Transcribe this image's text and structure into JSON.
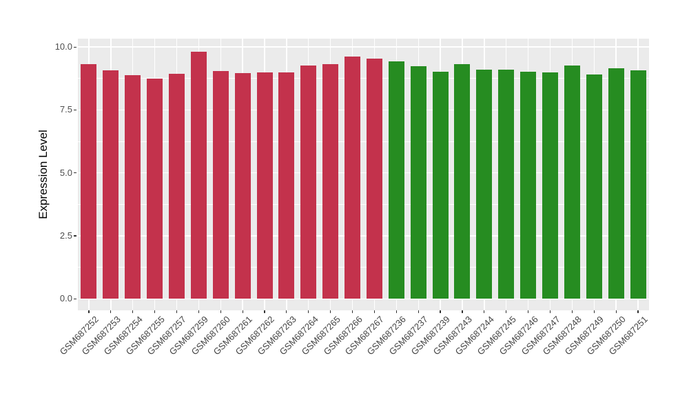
{
  "chart_data": {
    "type": "bar",
    "title": "",
    "xlabel": "",
    "ylabel": "Expression Level",
    "ylim": [
      0,
      10.3
    ],
    "grid": "white major and minor horizontal gridlines plus vertical gridlines at each bar center, on light gray panel",
    "legend_position": "none",
    "yticks": {
      "values": [
        0,
        2.5,
        5,
        7.5,
        10
      ],
      "labels": [
        "0.0",
        "2.5",
        "5.0",
        "7.5",
        "10.0"
      ],
      "minor_values": [
        1.25,
        3.75,
        6.25,
        8.75
      ]
    },
    "groups": [
      {
        "name": "red-group",
        "color": "#C3324C",
        "samples": [
          {
            "label": "GSM687252",
            "value": 9.31
          },
          {
            "label": "GSM687253",
            "value": 9.08
          },
          {
            "label": "GSM687254",
            "value": 8.88
          },
          {
            "label": "GSM687255",
            "value": 8.74
          },
          {
            "label": "GSM687257",
            "value": 8.93
          },
          {
            "label": "GSM687259",
            "value": 9.81
          },
          {
            "label": "GSM687260",
            "value": 9.04
          },
          {
            "label": "GSM687261",
            "value": 8.95
          },
          {
            "label": "GSM687262",
            "value": 8.99
          },
          {
            "label": "GSM687263",
            "value": 8.99
          },
          {
            "label": "GSM687264",
            "value": 9.25
          },
          {
            "label": "GSM687265",
            "value": 9.32
          },
          {
            "label": "GSM687266",
            "value": 9.61
          },
          {
            "label": "GSM687267",
            "value": 9.54
          }
        ]
      },
      {
        "name": "green-group",
        "color": "#268C21",
        "samples": [
          {
            "label": "GSM687236",
            "value": 9.42
          },
          {
            "label": "GSM687237",
            "value": 9.23
          },
          {
            "label": "GSM687239",
            "value": 9.02
          },
          {
            "label": "GSM687243",
            "value": 9.33
          },
          {
            "label": "GSM687244",
            "value": 9.09
          },
          {
            "label": "GSM687245",
            "value": 9.09
          },
          {
            "label": "GSM687246",
            "value": 9.01
          },
          {
            "label": "GSM687247",
            "value": 8.98
          },
          {
            "label": "GSM687248",
            "value": 9.25
          },
          {
            "label": "GSM687249",
            "value": 8.91
          },
          {
            "label": "GSM687250",
            "value": 9.15
          },
          {
            "label": "GSM687251",
            "value": 9.08
          }
        ]
      }
    ]
  },
  "style": {
    "figure_bg": "#FFFFFF",
    "panel_bg": "#EBEBEB",
    "grid_color": "#FFFFFF",
    "axis_text_color": "#4D4D4D",
    "axis_title_color": "#000000",
    "tick_mark_color": "#333333"
  }
}
